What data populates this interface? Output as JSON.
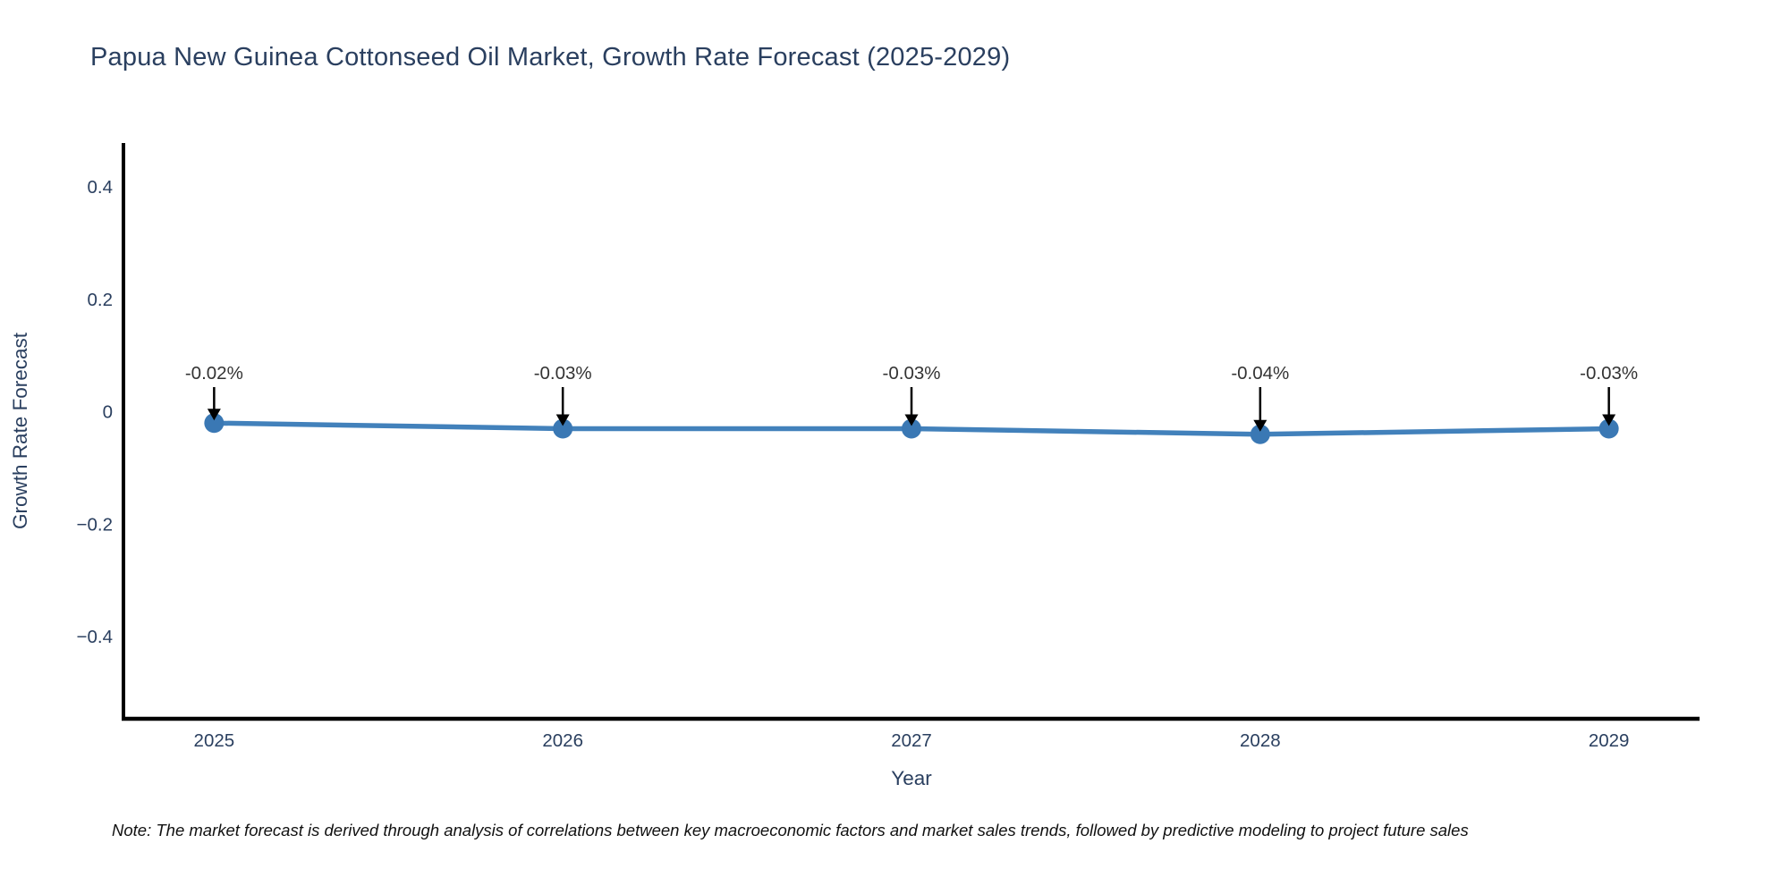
{
  "title": "Papua New Guinea Cottonseed Oil Market, Growth Rate Forecast (2025-2029)",
  "note": "Note: The market forecast is derived through analysis of correlations between key macroeconomic factors and market sales trends, followed by predictive modeling to project future sales",
  "chart_data": {
    "type": "line",
    "title": "Papua New Guinea Cottonseed Oil Market, Growth Rate Forecast (2025-2029)",
    "xlabel": "Year",
    "ylabel": "Growth Rate Forecast",
    "x": [
      2025,
      2026,
      2027,
      2028,
      2029
    ],
    "series": [
      {
        "name": "Growth Rate Forecast",
        "values": [
          -0.02,
          -0.03,
          -0.03,
          -0.04,
          -0.03
        ],
        "annotations": [
          "-0.02%",
          "-0.03%",
          "-0.03%",
          "-0.04%",
          "-0.03%"
        ]
      }
    ],
    "x_tick_labels": [
      "2025",
      "2026",
      "2027",
      "2028",
      "2029"
    ],
    "y_ticks": [
      0.4,
      0.2,
      0,
      -0.2,
      -0.4
    ],
    "y_tick_labels": [
      "0.4",
      "0.2",
      "0",
      "−0.2",
      "−0.4"
    ],
    "xlim": [
      2024.74,
      2029.26
    ],
    "ylim": [
      -0.546,
      0.478
    ],
    "grid": false,
    "legend": "none",
    "colors": {
      "line": "#4281bb",
      "marker": "#3a78b4",
      "axis": "#000000",
      "text": "#2a3f5f",
      "annotation_text": "#333333",
      "arrow": "#000000",
      "background": "#ffffff"
    }
  }
}
